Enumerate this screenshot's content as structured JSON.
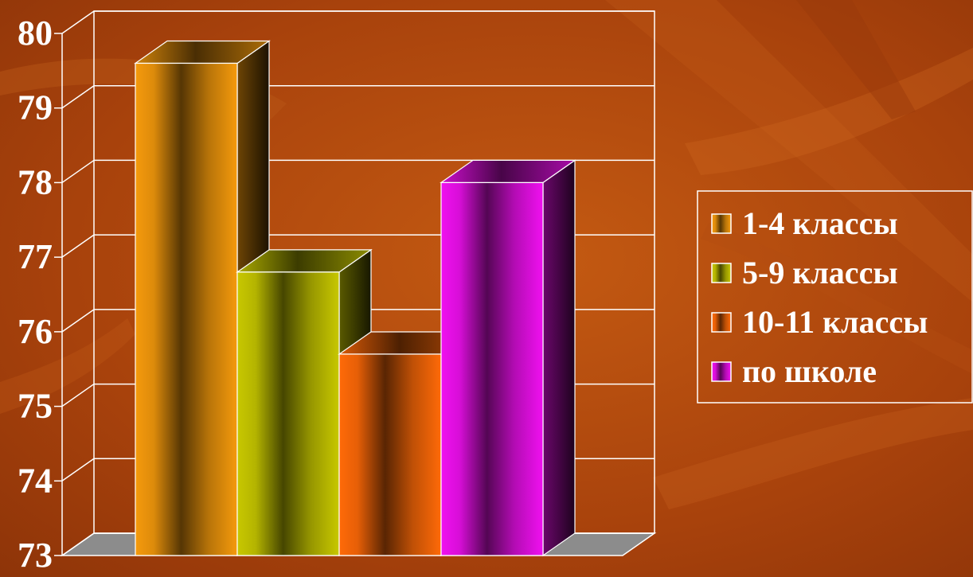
{
  "chart_data": {
    "type": "bar",
    "title": "",
    "xlabel": "",
    "ylabel": "",
    "ylim": [
      73,
      80
    ],
    "y_ticks": [
      "73",
      "74",
      "75",
      "76",
      "77",
      "78",
      "79",
      "80"
    ],
    "grid": true,
    "legend_position": "right",
    "categories": [
      ""
    ],
    "series": [
      {
        "name": "1-4 классы",
        "values": [
          79.6
        ],
        "color": "#f59a0c"
      },
      {
        "name": "5-9 классы",
        "values": [
          76.8
        ],
        "color": "#c8c800"
      },
      {
        "name": "10-11 классы",
        "values": [
          75.7
        ],
        "color": "#ff6a08"
      },
      {
        "name": "по школе",
        "values": [
          78.0
        ],
        "color": "#f010f0"
      }
    ]
  }
}
